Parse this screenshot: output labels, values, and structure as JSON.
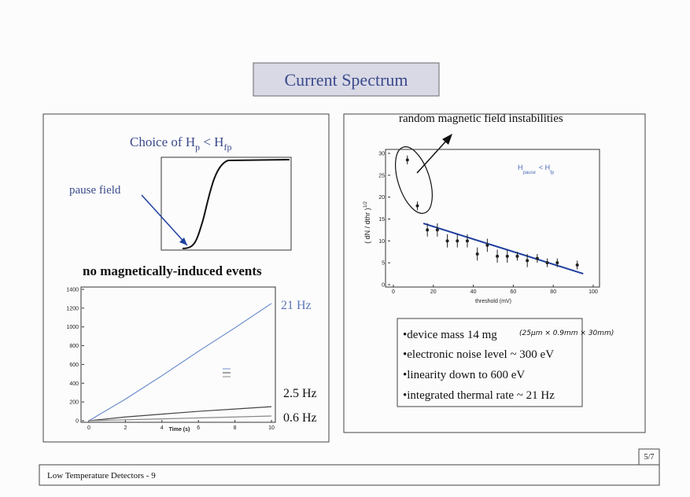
{
  "title": "Current Spectrum",
  "footer": {
    "text": "Low Temperature Detectors - 9",
    "page": "5/7"
  },
  "left_panel": {
    "heading": {
      "part1": "Choice of H",
      "sub1": "p",
      "part2": " < H",
      "sub2": "fp"
    },
    "pause_label": "pause field",
    "caption": "no magnetically-induced events",
    "rates": [
      "21 Hz",
      "2.5 Hz",
      "0.6 Hz"
    ],
    "plot": {
      "type": "line",
      "xlabel": "Time (s)",
      "x": [
        0,
        2,
        4,
        6,
        8,
        10
      ],
      "series": [
        {
          "color": "#6f90cf",
          "values": [
            0,
            230,
            480,
            740,
            990,
            1250
          ]
        },
        {
          "color": "#444444",
          "values": [
            0,
            40,
            70,
            100,
            125,
            150
          ]
        },
        {
          "color": "#888888",
          "values": [
            0,
            10,
            20,
            30,
            40,
            50
          ]
        }
      ],
      "xlim": [
        0,
        10
      ],
      "ylim": [
        0,
        1400
      ],
      "xticks": [
        0,
        2,
        4,
        6,
        8,
        10
      ],
      "yticks": [
        0,
        200,
        400,
        600,
        800,
        1000,
        1200,
        1400
      ]
    }
  },
  "right_panel": {
    "annotation": "random magnetic field instabilities",
    "plot": {
      "type": "scatter",
      "xlabel": "threshold (mV)",
      "ylabel": "( dN / dthr )",
      "ylabel_sup": "1/2",
      "legend": {
        "part1": "H",
        "sub1": "pause",
        "part2": "< H",
        "sub2": "fp"
      },
      "x": [
        7,
        12,
        17,
        22,
        27,
        32,
        37,
        42,
        47,
        52,
        57,
        62,
        67,
        72,
        77,
        82,
        92
      ],
      "y": [
        28.5,
        18,
        12.5,
        12.5,
        10,
        10,
        10,
        7,
        9,
        6.5,
        6.5,
        6.5,
        5.5,
        6,
        5,
        5,
        4.5
      ],
      "err": [
        1,
        1,
        1.5,
        1.5,
        1.5,
        1.5,
        1.5,
        1.5,
        1.5,
        1.5,
        1.5,
        1,
        1.5,
        1,
        1,
        1,
        1
      ],
      "fit": {
        "x": [
          15,
          95
        ],
        "y": [
          14,
          2.5
        ],
        "color": "#1f3f9f"
      },
      "xlim": [
        0,
        100
      ],
      "ylim": [
        0,
        30
      ],
      "xticks": [
        0,
        20,
        40,
        60,
        80,
        100
      ],
      "yticks": [
        0,
        5,
        10,
        15,
        20,
        25,
        30
      ]
    },
    "bullets": [
      "•device mass 14 mg",
      "•electronic noise level ~ 300 eV",
      "•linearity down to 600 eV",
      "•integrated thermal rate ~ 21 Hz"
    ],
    "note": "(25μm × 0.9mm × 30mm)"
  }
}
